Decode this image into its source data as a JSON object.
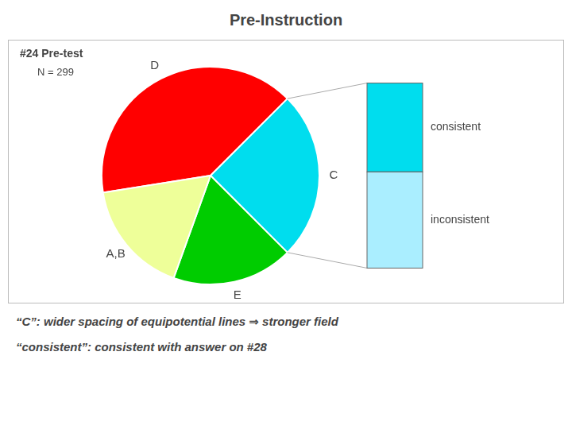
{
  "chart_data": {
    "type": "pie",
    "title": "Pre-Instruction",
    "annotations": [
      "#24 Pre-test",
      "N = 299"
    ],
    "categories": [
      "D",
      "C",
      "E",
      "A,B"
    ],
    "values": [
      40,
      25,
      18,
      17
    ],
    "colors": [
      "#FF0000",
      "#00DDEE",
      "#00CC00",
      "#EEFF99"
    ],
    "breakdown": {
      "of": "C",
      "categories": [
        "consistent",
        "inconsistent"
      ],
      "values": [
        0.48,
        0.52
      ],
      "colors": [
        "#00DDEE",
        "#AAEEFF"
      ]
    },
    "footnotes": [
      "“C”: wider spacing of equipotential lines ⇒ stronger field",
      "“consistent”: consistent with answer on #28"
    ]
  }
}
